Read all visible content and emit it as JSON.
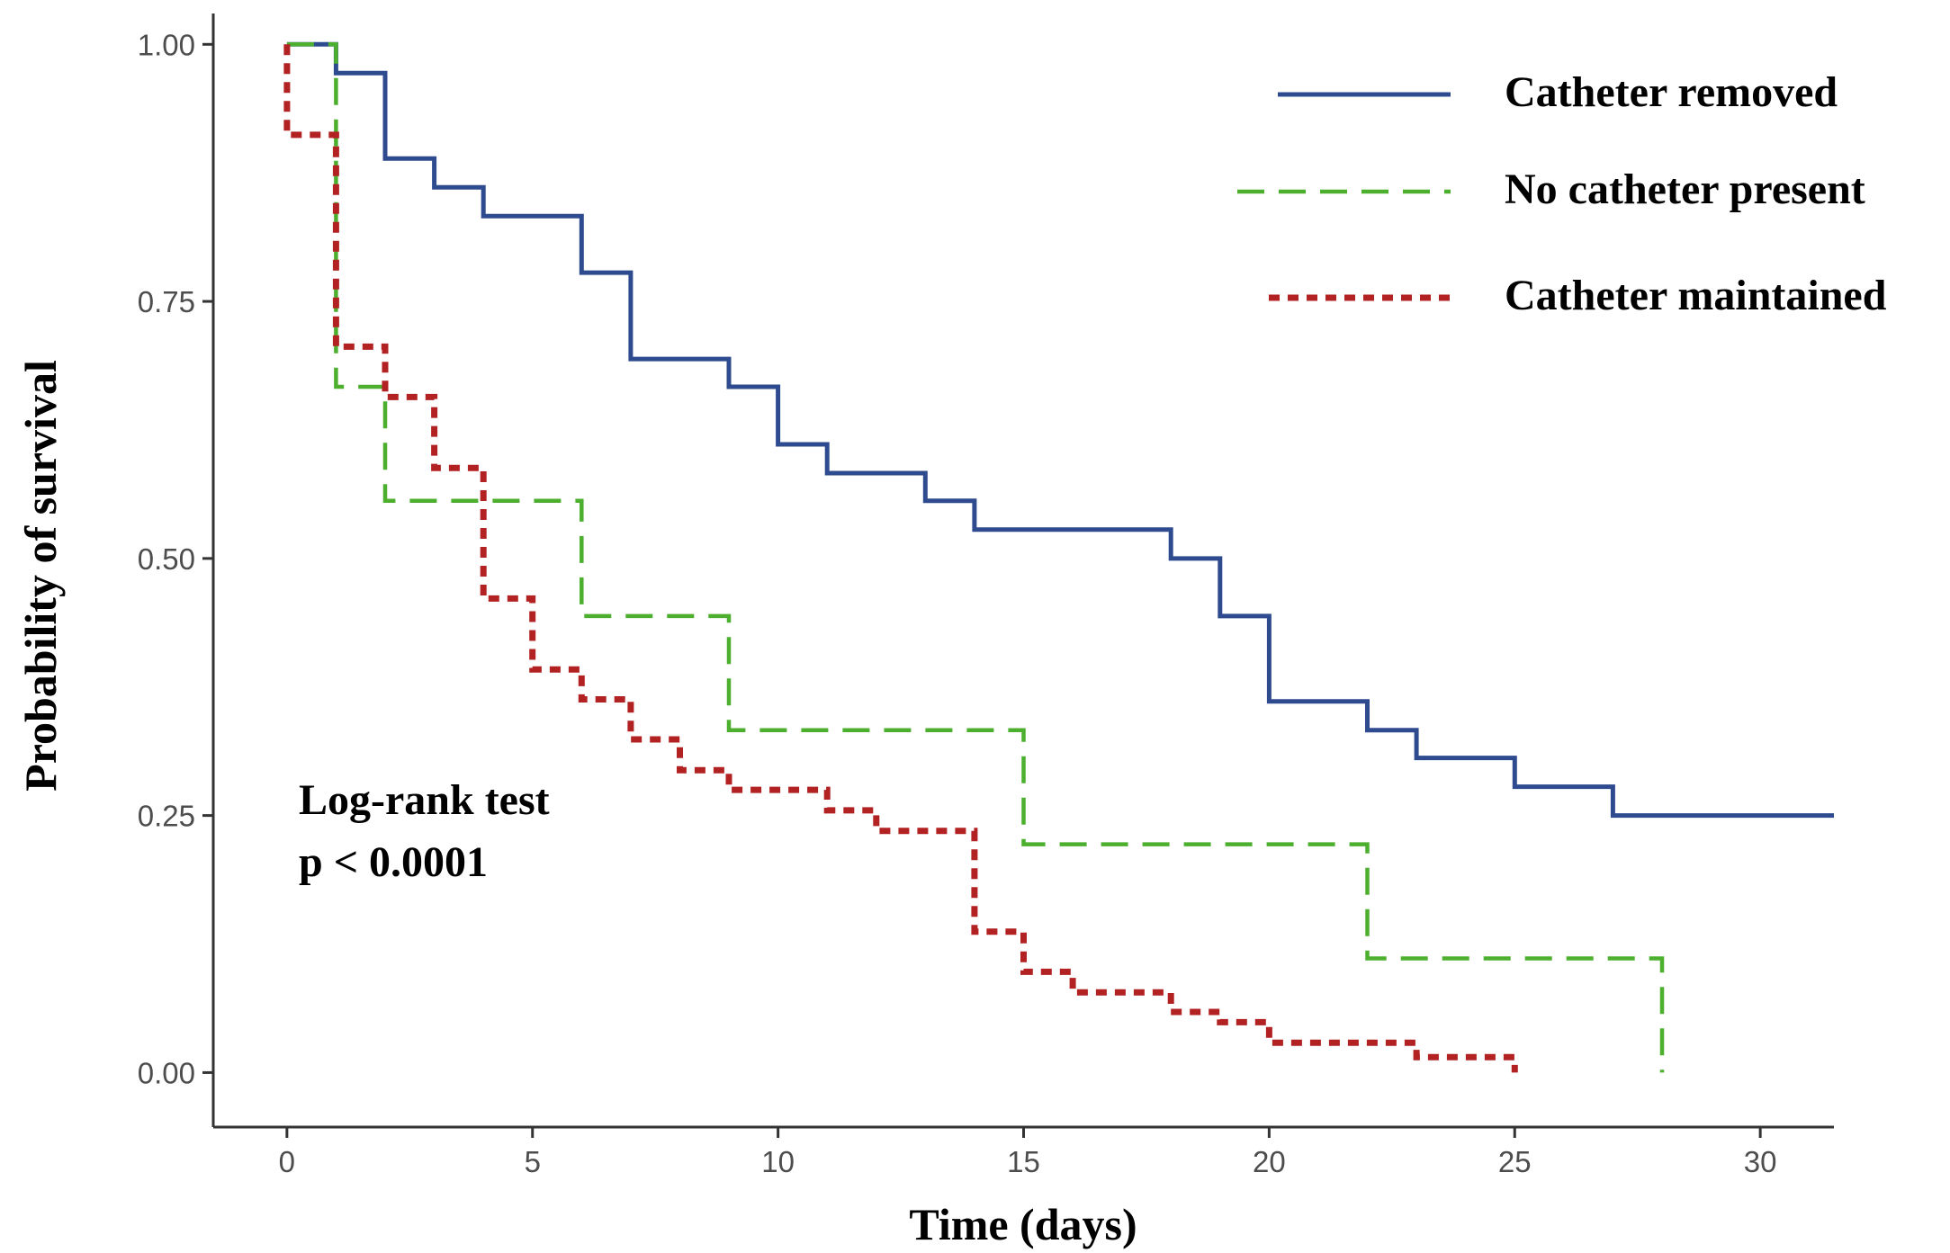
{
  "chart_data": {
    "type": "line",
    "step": true,
    "title": "",
    "xlabel": "Time (days)",
    "ylabel": "Probability of survival",
    "xlim": [
      -1.5,
      31.5
    ],
    "ylim": [
      -0.053,
      1.03
    ],
    "xticks": [
      0,
      5,
      10,
      15,
      20,
      25,
      30
    ],
    "xtick_labels": [
      "0",
      "5",
      "10",
      "15",
      "20",
      "25",
      "30"
    ],
    "yticks": [
      0,
      0.25,
      0.5,
      0.75,
      1.0
    ],
    "ytick_labels": [
      "0.00",
      "0.25",
      "0.50",
      "0.75",
      "1.00"
    ],
    "grid": false,
    "legend_position": "top-right",
    "annotations": [
      "Log-rank test",
      "p < 0.0001"
    ],
    "series": [
      {
        "name": "Catheter removed",
        "color": "#2f4b8f",
        "line_style": "solid",
        "points": [
          [
            0,
            1.0
          ],
          [
            1,
            0.972
          ],
          [
            2,
            0.889
          ],
          [
            3,
            0.861
          ],
          [
            4,
            0.833
          ],
          [
            6,
            0.778
          ],
          [
            7,
            0.694
          ],
          [
            9,
            0.667
          ],
          [
            10,
            0.611
          ],
          [
            11,
            0.583
          ],
          [
            13,
            0.556
          ],
          [
            14,
            0.528
          ],
          [
            18,
            0.5
          ],
          [
            19,
            0.444
          ],
          [
            20,
            0.361
          ],
          [
            22,
            0.333
          ],
          [
            23,
            0.306
          ],
          [
            25,
            0.278
          ],
          [
            27,
            0.25
          ],
          [
            31.5,
            0.25
          ]
        ]
      },
      {
        "name": "No catheter present",
        "color": "#4caf2e",
        "line_style": "dashed",
        "points": [
          [
            0,
            1.0
          ],
          [
            1,
            0.667
          ],
          [
            2,
            0.556
          ],
          [
            6,
            0.444
          ],
          [
            9,
            0.333
          ],
          [
            15,
            0.222
          ],
          [
            22,
            0.111
          ],
          [
            28,
            0.0
          ]
        ]
      },
      {
        "name": "Catheter maintained",
        "color": "#b22222",
        "line_style": "dotted",
        "points": [
          [
            0,
            1.0
          ],
          [
            0,
            0.912
          ],
          [
            1,
            0.706
          ],
          [
            2,
            0.657
          ],
          [
            3,
            0.588
          ],
          [
            4,
            0.461
          ],
          [
            5,
            0.392
          ],
          [
            6,
            0.363
          ],
          [
            7,
            0.324
          ],
          [
            8,
            0.294
          ],
          [
            9,
            0.275
          ],
          [
            11,
            0.255
          ],
          [
            12,
            0.235
          ],
          [
            14,
            0.137
          ],
          [
            15,
            0.098
          ],
          [
            16,
            0.078
          ],
          [
            18,
            0.059
          ],
          [
            19,
            0.049
          ],
          [
            20,
            0.029
          ],
          [
            23,
            0.015
          ],
          [
            25,
            0.0
          ]
        ]
      }
    ]
  }
}
